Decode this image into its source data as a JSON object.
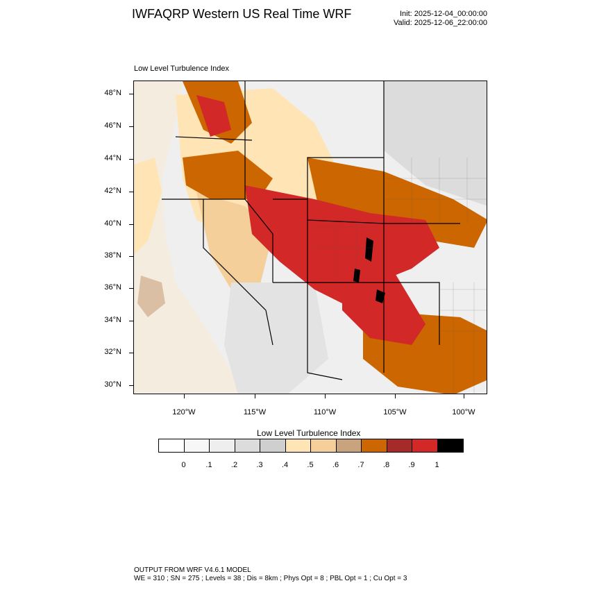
{
  "header": {
    "title": "IWFAQRP Western US Real Time WRF",
    "init": "Init: 2025-12-04_00:00:00",
    "valid": "Valid: 2025-12-06_22:00:00"
  },
  "map": {
    "caption": "Low Level Turbulence Index",
    "lat_labels": [
      "48°N",
      "46°N",
      "44°N",
      "42°N",
      "40°N",
      "38°N",
      "36°N",
      "34°N",
      "32°N",
      "30°N"
    ],
    "lon_labels": [
      "120°W",
      "115°W",
      "110°W",
      "105°W",
      "100°W"
    ]
  },
  "colorbar": {
    "title": "Low Level Turbulence Index",
    "colors": [
      "#ffffff",
      "#f7f7f7",
      "#eeeeee",
      "#dcdcdc",
      "#cfcfcf",
      "#ffe4b5",
      "#f5cf9a",
      "#c9a27e",
      "#cc6600",
      "#a52a2a",
      "#d22828",
      "#000000"
    ],
    "labels": [
      "0",
      ".1",
      ".2",
      ".3",
      ".4",
      ".5",
      ".6",
      ".7",
      ".8",
      ".9",
      "1"
    ]
  },
  "footer": {
    "line1": "OUTPUT FROM WRF V4.6.1 MODEL",
    "line2": "WE = 310 ; SN = 275 ; Levels = 38 ; Dis = 8km ; Phys Opt = 8 ; PBL Opt = 1 ; Cu Opt = 3"
  }
}
